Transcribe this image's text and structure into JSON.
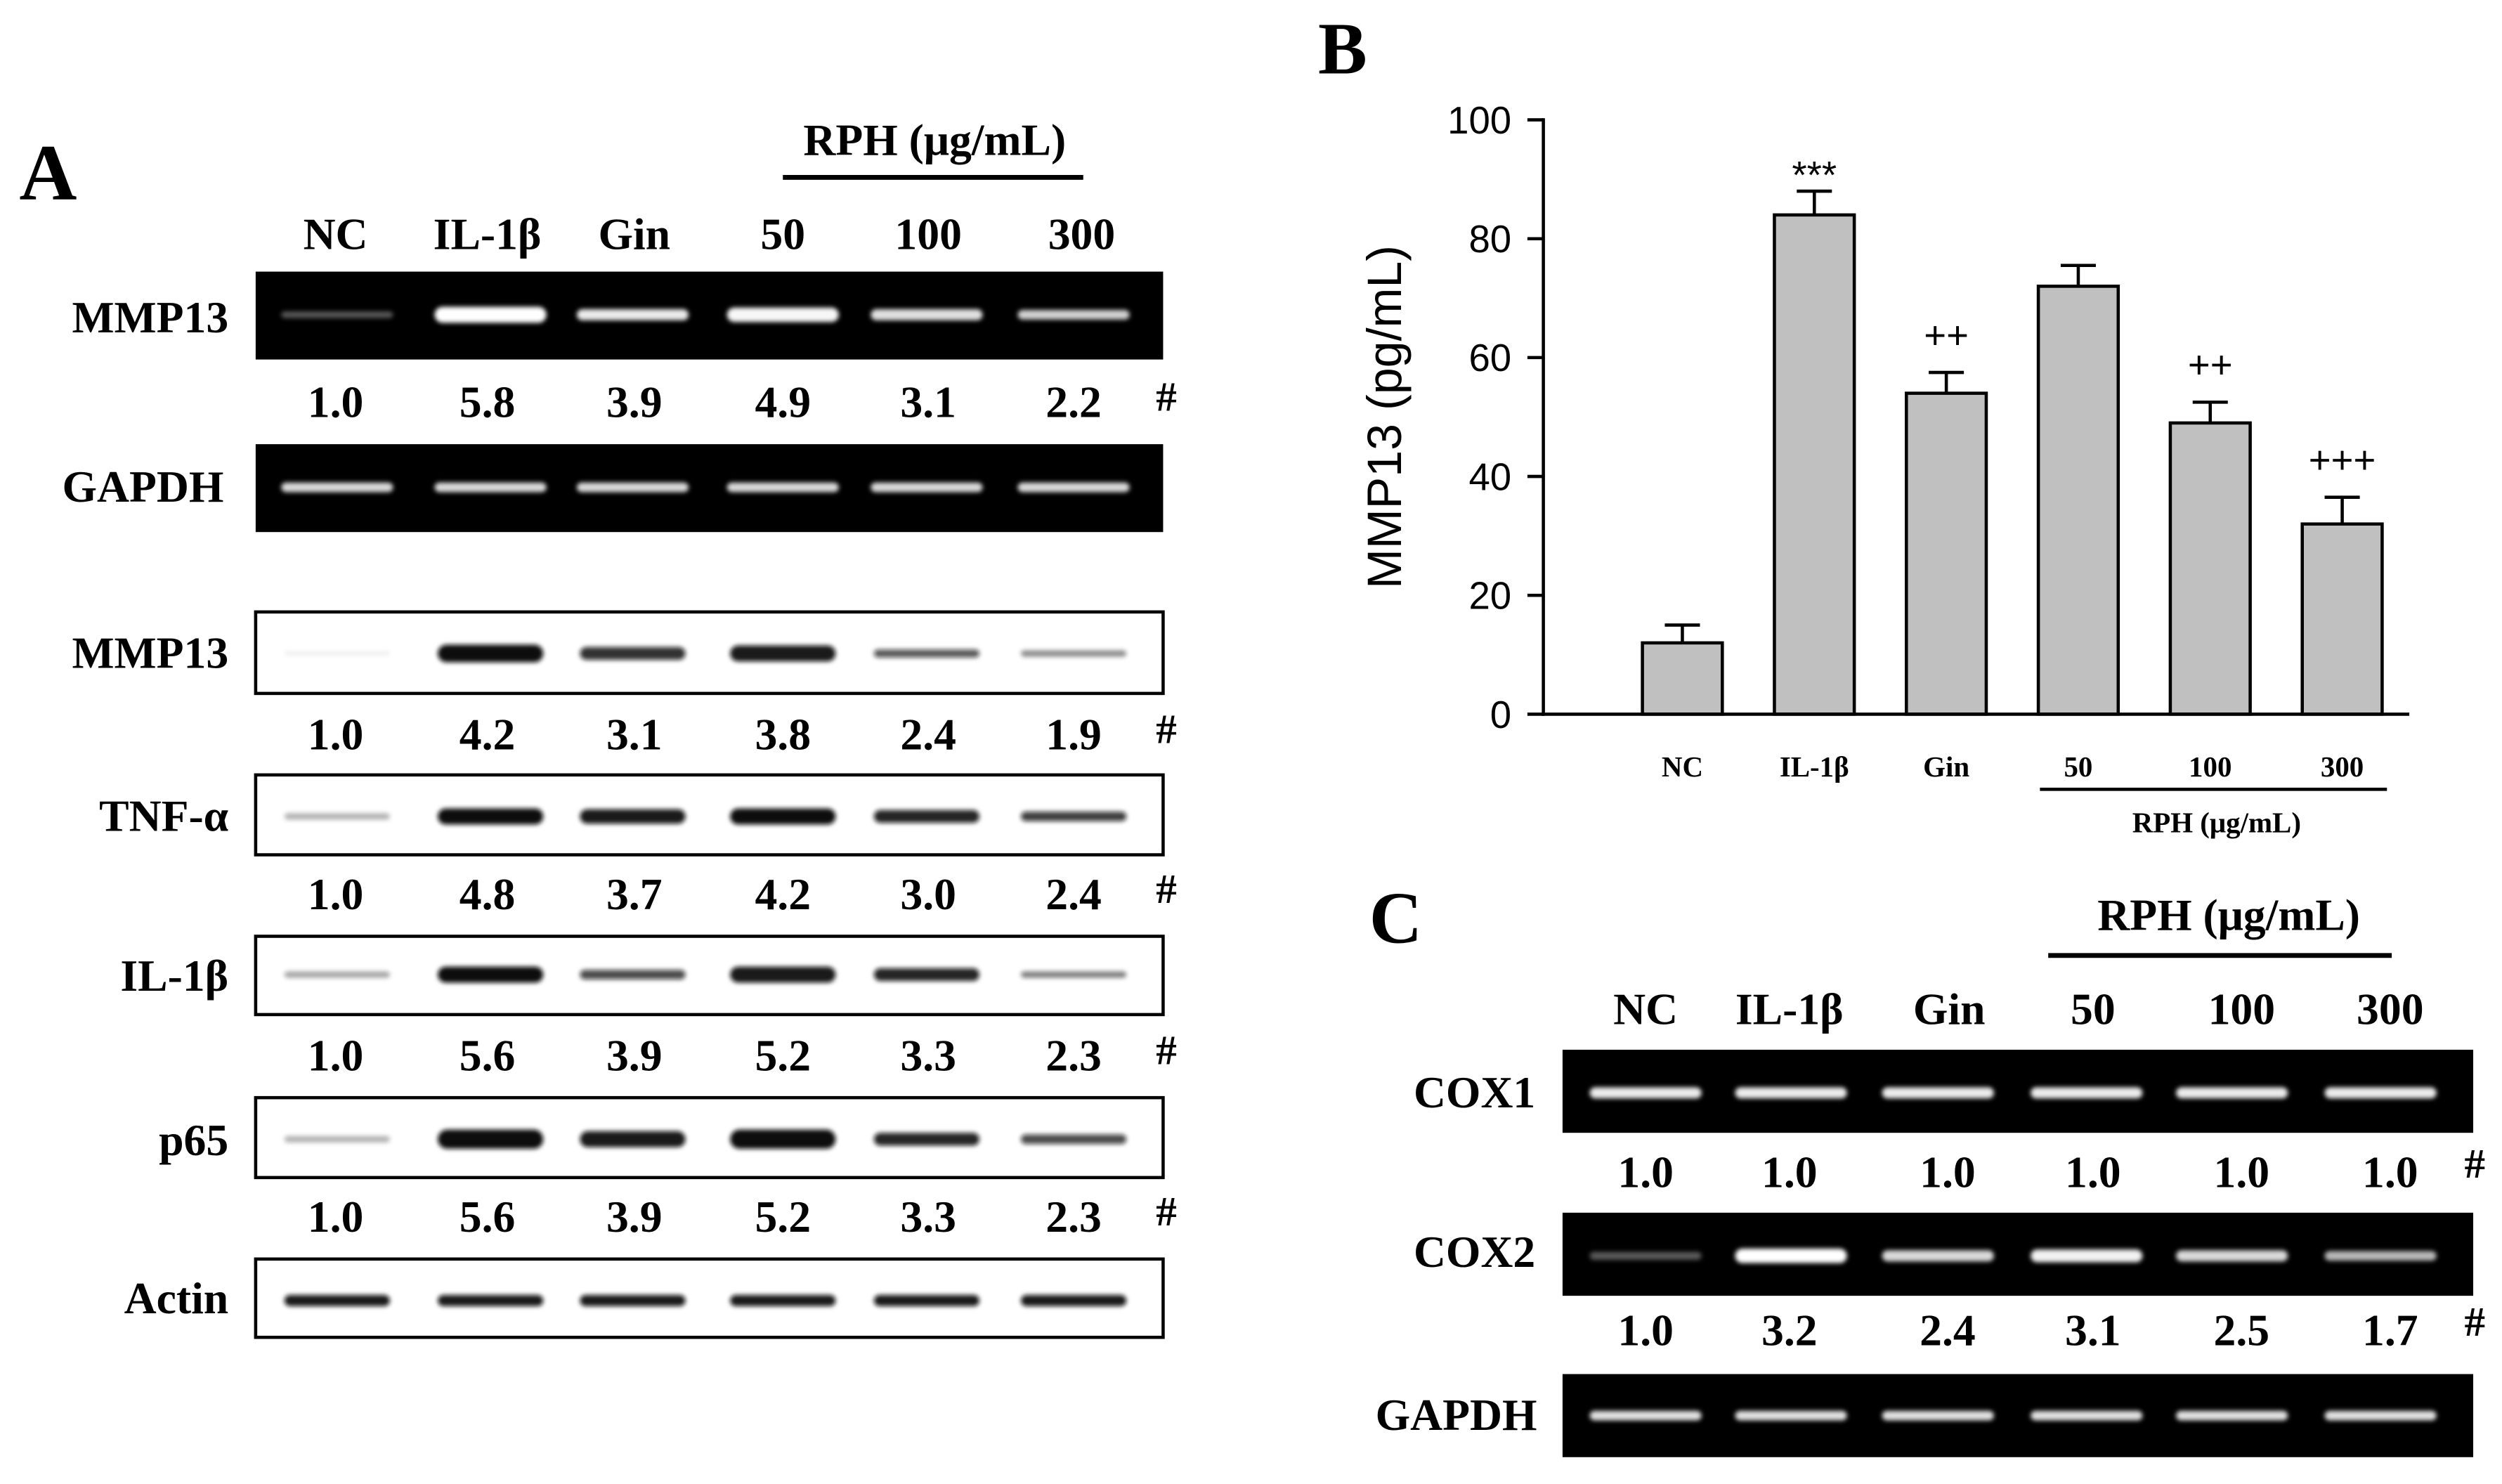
{
  "panel_a": {
    "label": "A",
    "group_label": "RPH (μg/mL)",
    "lanes": [
      "NC",
      "IL-1β",
      "Gin",
      "50",
      "100",
      "300"
    ],
    "gel_rows": [
      {
        "name": "MMP13",
        "ratios": [
          "1.0",
          "5.8",
          "3.9",
          "4.9",
          "3.1",
          "2.2"
        ],
        "marker": "#"
      },
      {
        "name": "GAPDH"
      }
    ],
    "blot_rows": [
      {
        "name": "MMP13",
        "ratios": [
          "1.0",
          "4.2",
          "3.1",
          "3.8",
          "2.4",
          "1.9"
        ],
        "marker": "#"
      },
      {
        "name": "TNF-α",
        "ratios": [
          "1.0",
          "4.8",
          "3.7",
          "4.2",
          "3.0",
          "2.4"
        ],
        "marker": "#"
      },
      {
        "name": "IL-1β",
        "ratios": [
          "1.0",
          "5.6",
          "3.9",
          "5.2",
          "3.3",
          "2.3"
        ],
        "marker": "#"
      },
      {
        "name": "p65",
        "ratios": [
          "1.0",
          "5.6",
          "3.9",
          "5.2",
          "3.3",
          "2.3"
        ],
        "marker": "#"
      },
      {
        "name": "Actin"
      }
    ]
  },
  "panel_b": {
    "label": "B"
  },
  "panel_c": {
    "label": "C",
    "group_label": "RPH (μg/mL)",
    "lanes": [
      "NC",
      "IL-1β",
      "Gin",
      "50",
      "100",
      "300"
    ],
    "gel_rows": [
      {
        "name": "COX1",
        "ratios": [
          "1.0",
          "1.0",
          "1.0",
          "1.0",
          "1.0",
          "1.0"
        ],
        "marker": "#"
      },
      {
        "name": "COX2",
        "ratios": [
          "1.0",
          "3.2",
          "2.4",
          "3.1",
          "2.5",
          "1.7"
        ],
        "marker": "#"
      },
      {
        "name": "GAPDH"
      }
    ]
  },
  "chart_data": {
    "type": "bar",
    "categories": [
      "NC",
      "IL-1β",
      "Gin",
      "50",
      "100",
      "300"
    ],
    "values": [
      12,
      84,
      54,
      72,
      49,
      32
    ],
    "errors": [
      3,
      4,
      3.5,
      3.5,
      3.5,
      4.5
    ],
    "annotations": [
      null,
      "***",
      "++",
      null,
      "++",
      "+++"
    ],
    "group_label": "RPH (μg/mL)",
    "group_range": [
      3,
      5
    ],
    "ylabel": "MMP13 (pg/mL)",
    "ylim": [
      0,
      100
    ],
    "yticks": [
      0,
      20,
      40,
      60,
      80,
      100
    ]
  }
}
